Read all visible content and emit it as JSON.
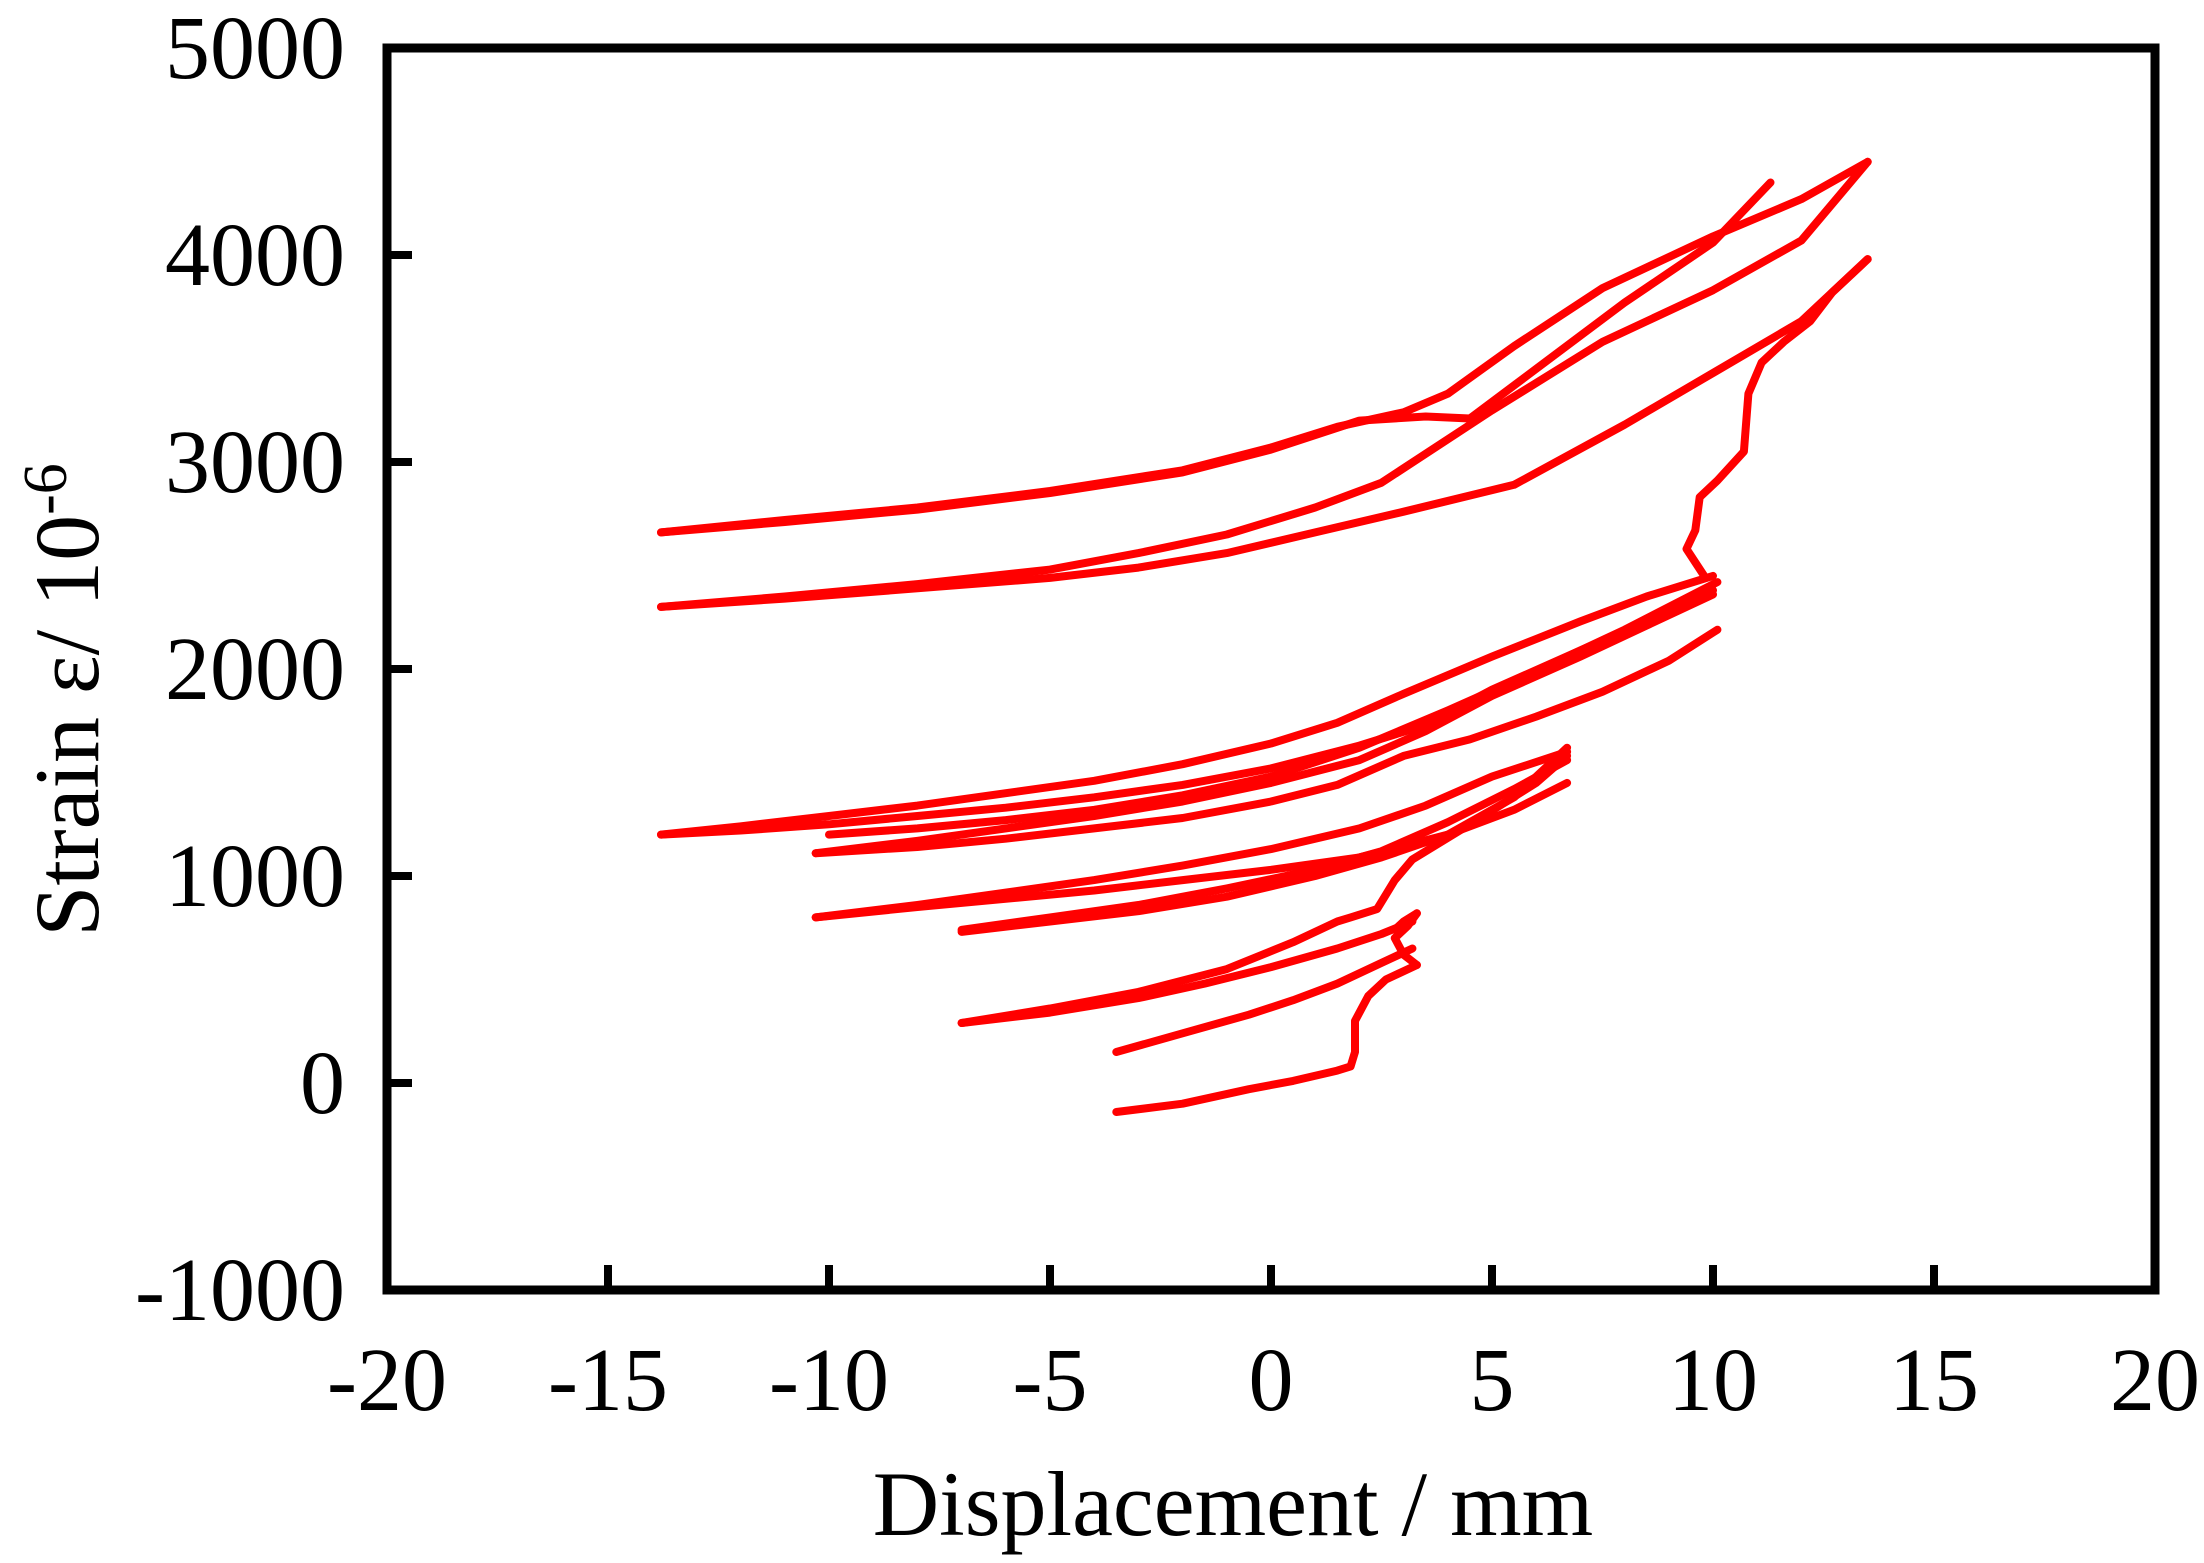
{
  "chart_data": {
    "type": "line",
    "xlabel": "Displacement / mm",
    "ylabel_main": "Strain ε/ 10",
    "ylabel_exp": "-6",
    "xlim": [
      -20,
      20
    ],
    "ylim": [
      -1000,
      5000
    ],
    "xticks": [
      -20,
      -15,
      -10,
      -5,
      0,
      5,
      10,
      15,
      20
    ],
    "yticks": [
      -1000,
      0,
      1000,
      2000,
      3000,
      4000,
      5000
    ],
    "grid": false,
    "line_color": "#ff0000",
    "series": [
      {
        "x": [
          -3.5,
          -2,
          -0.5,
          0.5,
          1.5,
          1.8,
          1.9,
          1.9,
          2.2,
          2.6,
          3.3
        ],
        "y": [
          -140,
          -100,
          -30,
          10,
          60,
          80,
          150,
          300,
          420,
          500,
          570
        ]
      },
      {
        "x": [
          -3.5,
          -2,
          -0.5,
          0.5,
          1.5,
          2.5,
          3.2
        ],
        "y": [
          150,
          240,
          330,
          400,
          480,
          580,
          650
        ]
      },
      {
        "x": [
          3.3,
          3.0,
          2.8,
          3.1,
          3.3
        ],
        "y": [
          570,
          620,
          700,
          760,
          820
        ]
      },
      {
        "x": [
          3.3,
          3.0,
          2.8,
          3.1
        ],
        "y": [
          820,
          780,
          740,
          770
        ]
      },
      {
        "x": [
          -7,
          -5,
          -3,
          -1.5,
          0,
          1.5,
          2.5,
          3.2
        ],
        "y": [
          290,
          340,
          410,
          480,
          560,
          650,
          720,
          780
        ]
      },
      {
        "x": [
          -7,
          -5,
          -3,
          -1,
          0.5,
          1.5,
          1.8,
          2.4,
          2.8,
          3.2,
          4.5,
          6.0,
          6.7
        ],
        "y": [
          290,
          360,
          440,
          550,
          680,
          780,
          800,
          840,
          980,
          1080,
          1250,
          1450,
          1580
        ]
      },
      {
        "x": [
          -7,
          -5,
          -3,
          -1,
          1,
          2.5,
          4,
          5.5,
          6.7
        ],
        "y": [
          730,
          780,
          830,
          900,
          1000,
          1090,
          1200,
          1380,
          1620
        ]
      },
      {
        "x": [
          -7,
          -5,
          -3,
          -1,
          1,
          2.5,
          4,
          5.5,
          6.7
        ],
        "y": [
          740,
          800,
          860,
          940,
          1030,
          1120,
          1260,
          1420,
          1560
        ]
      },
      {
        "x": [
          -10.3,
          -8,
          -6,
          -4,
          -2,
          0,
          2,
          4,
          5.5,
          6.7
        ],
        "y": [
          800,
          850,
          890,
          930,
          980,
          1030,
          1090,
          1200,
          1320,
          1450
        ]
      },
      {
        "x": [
          -10.3,
          -8,
          -6,
          -4,
          -2,
          0,
          2,
          3.5,
          5,
          6.7
        ],
        "y": [
          800,
          860,
          920,
          980,
          1050,
          1130,
          1230,
          1340,
          1480,
          1600
        ]
      },
      {
        "x": [
          -13.8,
          -12,
          -10,
          -8,
          -6,
          -4,
          -2,
          0,
          1.5,
          3,
          5,
          7,
          8.5,
          10
        ],
        "y": [
          1200,
          1240,
          1290,
          1340,
          1400,
          1460,
          1540,
          1640,
          1740,
          1880,
          2060,
          2230,
          2350,
          2450
        ]
      },
      {
        "x": [
          -13.8,
          -12,
          -10,
          -8,
          -6,
          -4,
          -2,
          0,
          2,
          3.5,
          5,
          7,
          8.5,
          10
        ],
        "y": [
          1200,
          1220,
          1250,
          1290,
          1330,
          1380,
          1440,
          1520,
          1630,
          1730,
          1900,
          2090,
          2230,
          2380
        ]
      },
      {
        "x": [
          -10.3,
          -8,
          -6,
          -4,
          -2,
          0,
          1.5,
          3,
          4.5,
          6,
          7.5,
          9,
          10.1
        ],
        "y": [
          1110,
          1140,
          1180,
          1230,
          1280,
          1360,
          1440,
          1580,
          1660,
          1770,
          1890,
          2040,
          2190
        ]
      },
      {
        "x": [
          -10.3,
          -8,
          -6,
          -4,
          -2,
          0,
          2,
          3.5,
          5,
          7,
          8.5,
          10
        ],
        "y": [
          1110,
          1170,
          1230,
          1290,
          1360,
          1450,
          1560,
          1700,
          1870,
          2060,
          2210,
          2360
        ]
      },
      {
        "x": [
          -10,
          -8,
          -6,
          -4,
          -2,
          0,
          2,
          4,
          6,
          8,
          10.1
        ],
        "y": [
          1200,
          1230,
          1270,
          1320,
          1390,
          1480,
          1620,
          1800,
          1990,
          2190,
          2420
        ]
      },
      {
        "x": [
          9.8,
          9.4,
          9.6,
          9.7,
          10.1,
          10.7,
          10.8,
          11.1,
          11.6,
          12.2,
          12.7,
          13.3,
          13.5
        ],
        "y": [
          2450,
          2580,
          2670,
          2830,
          2910,
          3050,
          3330,
          3480,
          3580,
          3680,
          3820,
          3940,
          3980
        ]
      },
      {
        "x": [
          -13.8,
          -11,
          -8,
          -5,
          -3,
          -1,
          1,
          3,
          5.5,
          8,
          10,
          12,
          13.5
        ],
        "y": [
          2300,
          2340,
          2390,
          2440,
          2490,
          2560,
          2660,
          2760,
          2890,
          3180,
          3430,
          3680,
          3980
        ]
      },
      {
        "x": [
          -13.8,
          -11,
          -8,
          -5,
          -3,
          -1,
          1,
          2.5,
          5,
          7.5,
          10,
          12,
          13.5
        ],
        "y": [
          2300,
          2350,
          2410,
          2480,
          2560,
          2650,
          2780,
          2900,
          3250,
          3580,
          3830,
          4070,
          4450
        ]
      },
      {
        "x": [
          -13.8,
          -11,
          -8,
          -5,
          -2,
          0,
          2,
          3.5,
          4.5,
          6,
          8,
          10,
          11.3
        ],
        "y": [
          2660,
          2710,
          2770,
          2850,
          2950,
          3060,
          3200,
          3220,
          3210,
          3450,
          3770,
          4060,
          4350
        ]
      },
      {
        "x": [
          -13.8,
          -11,
          -8,
          -5,
          -2,
          0,
          1.5,
          3,
          4,
          5.5,
          7.5,
          10,
          12,
          13.5
        ],
        "y": [
          2660,
          2720,
          2780,
          2860,
          2960,
          3070,
          3170,
          3240,
          3330,
          3560,
          3840,
          4090,
          4270,
          4450
        ]
      }
    ]
  }
}
